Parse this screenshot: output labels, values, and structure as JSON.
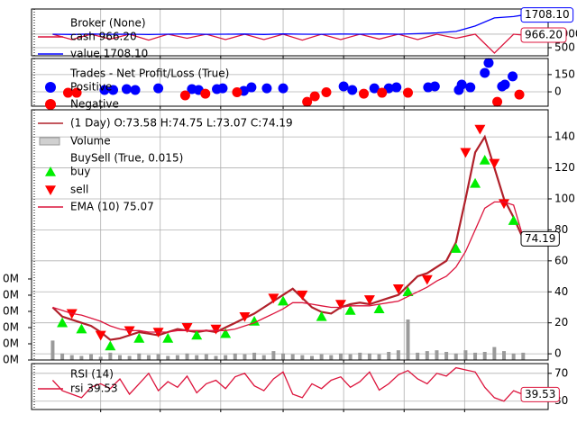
{
  "chart_data": [
    {
      "type": "line",
      "title": "Broker (None)",
      "xlim": [
        -2.2,
        51.6
      ],
      "xticks": [
        5,
        11.2,
        17.5,
        24,
        30.3,
        36.6,
        42.9
      ],
      "ylim": [
        200,
        1930
      ],
      "yticks": [
        500,
        1000
      ],
      "grid": true,
      "x": [
        0,
        2,
        4,
        6,
        8,
        10,
        12,
        14,
        16,
        18,
        20,
        22,
        24,
        26,
        28,
        30,
        32,
        34,
        36,
        38,
        40,
        42,
        44,
        46,
        48,
        49
      ],
      "series": [
        {
          "name": "cash 966.20",
          "color": "#dc143c",
          "end_label": "966.20",
          "values": [
            1000,
            800,
            1000,
            820,
            1000,
            780,
            1000,
            850,
            1000,
            800,
            1000,
            800,
            1000,
            780,
            1000,
            800,
            1000,
            820,
            1000,
            800,
            1000,
            850,
            1000,
            300,
            1000,
            966.2
          ]
        },
        {
          "name": "value 1708.10",
          "color": "#0000ff",
          "end_label": "1708.10",
          "values": [
            1000,
            990,
            1005,
            995,
            1000,
            985,
            1000,
            1010,
            995,
            1000,
            1005,
            990,
            1010,
            1000,
            995,
            1005,
            1000,
            1010,
            1000,
            1020,
            1050,
            1100,
            1300,
            1600,
            1650,
            1708.1
          ]
        }
      ]
    },
    {
      "type": "scatter",
      "title": "Trades - Net Profit/Loss (True)",
      "xlim": [
        -2.2,
        51.6
      ],
      "xticks": [
        5,
        11.2,
        17.5,
        24,
        30.3,
        36.6,
        42.9
      ],
      "ylim": [
        -125,
        290
      ],
      "yticks": [
        0,
        150
      ],
      "grid": true,
      "series": [
        {
          "name": "Positive",
          "color": "#0000ff",
          "marker": "o",
          "x": [
            5.4,
            6.3,
            7.7,
            8.6,
            11,
            14.5,
            15.2,
            17.1,
            17.7,
            19.9,
            20.7,
            22.3,
            24,
            30.3,
            31.2,
            33.5,
            35,
            35.8,
            39.1,
            39.8,
            42.3,
            42.6,
            43.5,
            45,
            45.4,
            46.8,
            47.1,
            47.9
          ],
          "values": [
            16,
            16,
            24,
            16,
            31,
            24,
            16,
            24,
            31,
            8,
            39,
            31,
            31,
            47,
            16,
            31,
            31,
            39,
            39,
            47,
            16,
            63,
            39,
            165,
            252,
            47,
            63,
            134
          ]
        },
        {
          "name": "Negative",
          "color": "#ff0000",
          "marker": "o",
          "x": [
            1.6,
            2.5,
            13.8,
            15.9,
            19.2,
            26.5,
            27.3,
            28.5,
            32.4,
            34.3,
            37,
            46.3,
            48.6
          ],
          "values": [
            -8,
            -8,
            -31,
            -16,
            -4,
            -87,
            -39,
            -4,
            -16,
            -8,
            -8,
            -87,
            -24
          ]
        }
      ]
    },
    {
      "type": "line",
      "subtitle": "BuySell (True, 0.015)",
      "xlim": [
        -2.2,
        51.6
      ],
      "xticks": [
        5,
        11.2,
        17.5,
        24,
        30.3,
        36.6,
        42.9
      ],
      "ylim": [
        -4,
        157.5
      ],
      "yticks": [
        0,
        20,
        40,
        60,
        80,
        100,
        120,
        140
      ],
      "grid": true,
      "y2lim": [
        0,
        1544
      ],
      "y2ticks": [
        {
          "value": 0,
          "label": "0M"
        },
        {
          "value": 100,
          "label": "0M"
        },
        {
          "value": 200,
          "label": "0M"
        },
        {
          "value": 300,
          "label": "0M"
        },
        {
          "value": 400,
          "label": "0M"
        },
        {
          "value": 500,
          "label": "0M"
        }
      ],
      "x": [
        0,
        1,
        2,
        3,
        4,
        5,
        6,
        7,
        8,
        9,
        10,
        11,
        12,
        13,
        14,
        15,
        16,
        17,
        18,
        19,
        20,
        21,
        22,
        23,
        24,
        25,
        26,
        27,
        28,
        29,
        30,
        31,
        32,
        33,
        34,
        35,
        36,
        37,
        38,
        39,
        40,
        41,
        42,
        43,
        44,
        45,
        46,
        47,
        48,
        49
      ],
      "series": [
        {
          "name": "(1 Day) O:73.58 H:74.75 L:73.07 C:74.19",
          "color": "#b0202a",
          "width": 2.2,
          "end_label": "74.19",
          "values": [
            30,
            24,
            22,
            20,
            18,
            14,
            9,
            10,
            12,
            14,
            13,
            12,
            14,
            16,
            15,
            14,
            15,
            14,
            17,
            20,
            23,
            26,
            30,
            34,
            38,
            42,
            36,
            30,
            27,
            26,
            30,
            32,
            33,
            32,
            34,
            36,
            38,
            44,
            50,
            52,
            56,
            60,
            72,
            100,
            130,
            140,
            120,
            100,
            88,
            74.19
          ]
        },
        {
          "name": "Volume",
          "type": "bar",
          "axis": "y2",
          "color": "#9a9a9a",
          "values": [
            120,
            40,
            30,
            25,
            35,
            20,
            45,
            30,
            25,
            40,
            30,
            35,
            25,
            30,
            40,
            30,
            35,
            25,
            30,
            40,
            35,
            45,
            30,
            55,
            40,
            35,
            30,
            25,
            35,
            30,
            40,
            35,
            45,
            40,
            35,
            50,
            60,
            250,
            45,
            55,
            60,
            50,
            40,
            60,
            45,
            50,
            80,
            55,
            40,
            45
          ]
        },
        {
          "name": "buy",
          "type": "scatter",
          "marker": "^",
          "color": "#00ee00",
          "x": [
            1,
            3,
            6,
            9,
            12,
            15,
            18,
            21,
            24,
            28,
            31,
            34,
            37,
            42,
            44,
            45,
            48
          ],
          "values": [
            20,
            16,
            5,
            10,
            10,
            12,
            13,
            21,
            34,
            24,
            28,
            29,
            40,
            68,
            110,
            125,
            86
          ]
        },
        {
          "name": "sell",
          "type": "scatter",
          "marker": "v",
          "color": "#ff0000",
          "x": [
            2,
            5,
            8,
            11,
            14,
            17,
            20,
            23,
            26,
            30,
            33,
            36,
            39,
            43,
            44.5,
            46,
            47
          ],
          "values": [
            26,
            12,
            15,
            14,
            17,
            16,
            24,
            36,
            38,
            32,
            35,
            42,
            48,
            130,
            145,
            123,
            97
          ]
        },
        {
          "name": "EMA (10) 75.07",
          "color": "#dc143c",
          "values": [
            30,
            28,
            26,
            25,
            23,
            21,
            18,
            16,
            15,
            15,
            14,
            14,
            14,
            15,
            15,
            15,
            15,
            15,
            15,
            16,
            18,
            20,
            23,
            26,
            29,
            33,
            33,
            32,
            31,
            30,
            30,
            31,
            31,
            31,
            32,
            33,
            34,
            37,
            40,
            43,
            47,
            50,
            56,
            66,
            80,
            94,
            98,
            98,
            96,
            75.07
          ]
        }
      ]
    },
    {
      "type": "line",
      "title": "RSI (14)",
      "xlim": [
        -2.2,
        51.6
      ],
      "xticks": [
        5,
        11.2,
        17.5,
        24,
        30.3,
        36.6,
        42.9
      ],
      "ylim": [
        18,
        84
      ],
      "yticks": [
        30,
        70
      ],
      "grid": true,
      "x": [
        0,
        1,
        2,
        3,
        4,
        5,
        6,
        7,
        8,
        9,
        10,
        11,
        12,
        13,
        14,
        15,
        16,
        17,
        18,
        19,
        20,
        21,
        22,
        23,
        24,
        25,
        26,
        27,
        28,
        29,
        30,
        31,
        32,
        33,
        34,
        35,
        36,
        37,
        38,
        39,
        40,
        41,
        42,
        43,
        44,
        45,
        46,
        47,
        48,
        49
      ],
      "series": [
        {
          "name": "rsi 39.53",
          "color": "#dc143c",
          "end_label": "39.53",
          "values": [
            60,
            45,
            40,
            35,
            50,
            55,
            48,
            62,
            40,
            55,
            70,
            45,
            58,
            50,
            66,
            42,
            55,
            60,
            48,
            65,
            70,
            52,
            45,
            62,
            72,
            40,
            35,
            55,
            48,
            60,
            65,
            50,
            58,
            72,
            46,
            55,
            68,
            74,
            62,
            55,
            70,
            66,
            78,
            75,
            72,
            50,
            35,
            30,
            45,
            39.53
          ]
        }
      ]
    }
  ]
}
